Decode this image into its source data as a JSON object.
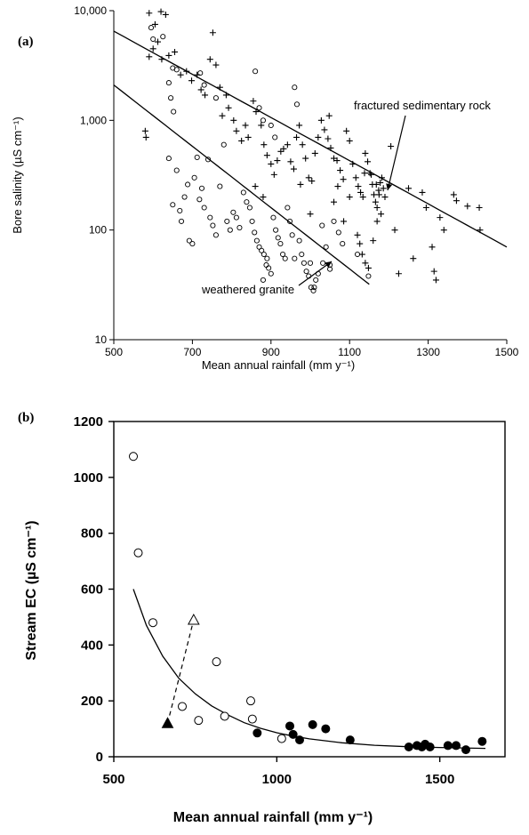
{
  "chart_data": [
    {
      "panel": "(a)",
      "type": "scatter",
      "xlabel": "Mean annual rainfall (mm y⁻¹)",
      "ylabel": "Bore salinity (µS cm⁻¹)",
      "xlim": [
        500,
        1500
      ],
      "ylim": [
        10,
        10000
      ],
      "yscale": "log",
      "x_ticks": [
        "500",
        "700",
        "900",
        "1100",
        "1300",
        "1500"
      ],
      "y_ticks": [
        "10",
        "100",
        "1,000",
        "10,000"
      ],
      "grid": false,
      "series": [
        {
          "marker": "plus",
          "points": [
            [
              590,
              9500
            ],
            [
              605,
              7500
            ],
            [
              620,
              9800
            ],
            [
              632,
              9200
            ],
            [
              590,
              3800
            ],
            [
              600,
              4500
            ],
            [
              612,
              5200
            ],
            [
              622,
              3600
            ],
            [
              640,
              3900
            ],
            [
              655,
              4200
            ],
            [
              580,
              800
            ],
            [
              582,
              700
            ],
            [
              670,
              2600
            ],
            [
              685,
              2800
            ],
            [
              698,
              2300
            ],
            [
              712,
              2600
            ],
            [
              722,
              1900
            ],
            [
              732,
              1700
            ],
            [
              745,
              3600
            ],
            [
              752,
              6300
            ],
            [
              760,
              3200
            ],
            [
              770,
              2000
            ],
            [
              776,
              1100
            ],
            [
              786,
              1700
            ],
            [
              792,
              1300
            ],
            [
              805,
              1000
            ],
            [
              812,
              800
            ],
            [
              825,
              650
            ],
            [
              835,
              900
            ],
            [
              842,
              700
            ],
            [
              855,
              1500
            ],
            [
              862,
              1200
            ],
            [
              875,
              900
            ],
            [
              882,
              600
            ],
            [
              890,
              480
            ],
            [
              900,
              400
            ],
            [
              908,
              320
            ],
            [
              916,
              430
            ],
            [
              925,
              520
            ],
            [
              932,
              550
            ],
            [
              942,
              600
            ],
            [
              950,
              420
            ],
            [
              958,
              360
            ],
            [
              965,
              700
            ],
            [
              972,
              900
            ],
            [
              980,
              600
            ],
            [
              988,
              450
            ],
            [
              996,
              300
            ],
            [
              1004,
              280
            ],
            [
              1012,
              500
            ],
            [
              1020,
              700
            ],
            [
              1028,
              1000
            ],
            [
              1036,
              820
            ],
            [
              1045,
              680
            ],
            [
              1052,
              560
            ],
            [
              1060,
              450
            ],
            [
              1068,
              430
            ],
            [
              1076,
              350
            ],
            [
              1084,
              290
            ],
            [
              1092,
              800
            ],
            [
              1100,
              650
            ],
            [
              1108,
              400
            ],
            [
              1116,
              300
            ],
            [
              1122,
              250
            ],
            [
              1128,
              220
            ],
            [
              1134,
              200
            ],
            [
              1140,
              500
            ],
            [
              1146,
              420
            ],
            [
              1152,
              330
            ],
            [
              1158,
              260
            ],
            [
              1162,
              210
            ],
            [
              1166,
              180
            ],
            [
              1170,
              160
            ],
            [
              1174,
              230
            ],
            [
              1178,
              270
            ],
            [
              1182,
              300
            ],
            [
              1186,
              240
            ],
            [
              1190,
              200
            ],
            [
              1120,
              90
            ],
            [
              1126,
              75
            ],
            [
              1132,
              60
            ],
            [
              1140,
              50
            ],
            [
              1148,
              45
            ],
            [
              1160,
              80
            ],
            [
              1170,
              120
            ],
            [
              1180,
              140
            ],
            [
              1205,
              580
            ],
            [
              1215,
              100
            ],
            [
              1225,
              40
            ],
            [
              1250,
              240
            ],
            [
              1262,
              55
            ],
            [
              1285,
              220
            ],
            [
              1295,
              160
            ],
            [
              1310,
              70
            ],
            [
              1315,
              42
            ],
            [
              1320,
              35
            ],
            [
              1330,
              130
            ],
            [
              1340,
              100
            ],
            [
              1365,
              210
            ],
            [
              1372,
              185
            ],
            [
              1400,
              165
            ],
            [
              1430,
              160
            ],
            [
              1432,
              100
            ],
            [
              860,
              250
            ],
            [
              880,
              200
            ],
            [
              1000,
              140
            ],
            [
              1060,
              180
            ],
            [
              1085,
              120
            ],
            [
              1138,
              330
            ],
            [
              1168,
              260
            ],
            [
              1175,
              210
            ],
            [
              1048,
              1100
            ],
            [
              1070,
              250
            ],
            [
              1100,
              200
            ],
            [
              1155,
              320
            ],
            [
              975,
              260
            ]
          ]
        },
        {
          "marker": "circle",
          "points": [
            [
              595,
              7000
            ],
            [
              600,
              5500
            ],
            [
              625,
              5800
            ],
            [
              645,
              1600
            ],
            [
              652,
              1200
            ],
            [
              640,
              450
            ],
            [
              650,
              170
            ],
            [
              660,
              350
            ],
            [
              668,
              150
            ],
            [
              672,
              120
            ],
            [
              680,
              200
            ],
            [
              688,
              260
            ],
            [
              692,
              80
            ],
            [
              700,
              75
            ],
            [
              705,
              300
            ],
            [
              712,
              460
            ],
            [
              718,
              190
            ],
            [
              724,
              240
            ],
            [
              730,
              160
            ],
            [
              740,
              440
            ],
            [
              745,
              130
            ],
            [
              752,
              110
            ],
            [
              760,
              90
            ],
            [
              770,
              250
            ],
            [
              780,
              600
            ],
            [
              788,
              120
            ],
            [
              796,
              100
            ],
            [
              804,
              145
            ],
            [
              812,
              130
            ],
            [
              820,
              105
            ],
            [
              830,
              220
            ],
            [
              838,
              180
            ],
            [
              846,
              160
            ],
            [
              852,
              120
            ],
            [
              858,
              95
            ],
            [
              864,
              80
            ],
            [
              870,
              70
            ],
            [
              876,
              65
            ],
            [
              882,
              60
            ],
            [
              888,
              48
            ],
            [
              894,
              45
            ],
            [
              900,
              40
            ],
            [
              906,
              130
            ],
            [
              912,
              100
            ],
            [
              918,
              85
            ],
            [
              924,
              75
            ],
            [
              930,
              60
            ],
            [
              936,
              55
            ],
            [
              942,
              160
            ],
            [
              948,
              120
            ],
            [
              954,
              90
            ],
            [
              960,
              2000
            ],
            [
              966,
              1400
            ],
            [
              972,
              80
            ],
            [
              978,
              60
            ],
            [
              984,
              50
            ],
            [
              990,
              42
            ],
            [
              996,
              38
            ],
            [
              1002,
              30
            ],
            [
              1008,
              28
            ],
            [
              1014,
              35
            ],
            [
              1020,
              40
            ],
            [
              1030,
              110
            ],
            [
              1040,
              70
            ],
            [
              1050,
              48
            ],
            [
              1060,
              120
            ],
            [
              1072,
              95
            ],
            [
              1082,
              75
            ],
            [
              860,
              2800
            ],
            [
              870,
              1300
            ],
            [
              880,
              1000
            ],
            [
              900,
              900
            ],
            [
              910,
              700
            ],
            [
              720,
              2700
            ],
            [
              730,
              2100
            ],
            [
              760,
              1600
            ],
            [
              640,
              2200
            ],
            [
              650,
              3000
            ],
            [
              660,
              2900
            ],
            [
              880,
              35
            ],
            [
              890,
              55
            ],
            [
              1000,
              50
            ],
            [
              1010,
              30
            ],
            [
              1120,
              60
            ],
            [
              1148,
              38
            ],
            [
              960,
              55
            ],
            [
              1050,
              44
            ],
            [
              1032,
              50
            ]
          ]
        }
      ],
      "curves": [
        {
          "name": "fractured sedimentary rock",
          "x": [
            500,
            1500
          ],
          "y": [
            6500,
            70
          ]
        },
        {
          "name": "weathered granite",
          "x": [
            500,
            1150
          ],
          "y": [
            2100,
            32
          ]
        }
      ],
      "annotations": [
        "fractured sedimentary rock",
        "weathered granite"
      ]
    },
    {
      "panel": "(b)",
      "type": "scatter",
      "xlabel": "Mean annual rainfall (mm y⁻¹)",
      "ylabel": "Stream EC (µS cm⁻¹)",
      "xlim": [
        500,
        1700
      ],
      "ylim": [
        0,
        1200
      ],
      "x_ticks": [
        "500",
        "1000",
        "1500"
      ],
      "y_ticks": [
        "0",
        "200",
        "400",
        "600",
        "800",
        "1000",
        "1200"
      ],
      "grid": false,
      "series": [
        {
          "marker": "open-circle",
          "points": [
            [
              560,
              1075
            ],
            [
              575,
              730
            ],
            [
              620,
              480
            ],
            [
              710,
              180
            ],
            [
              760,
              130
            ],
            [
              815,
              340
            ],
            [
              840,
              145
            ],
            [
              920,
              200
            ],
            [
              925,
              135
            ],
            [
              1015,
              65
            ]
          ]
        },
        {
          "marker": "filled-circle",
          "points": [
            [
              940,
              85
            ],
            [
              1040,
              110
            ],
            [
              1050,
              80
            ],
            [
              1070,
              60
            ],
            [
              1110,
              115
            ],
            [
              1150,
              100
            ],
            [
              1225,
              60
            ],
            [
              1405,
              35
            ],
            [
              1430,
              40
            ],
            [
              1445,
              35
            ],
            [
              1455,
              45
            ],
            [
              1470,
              35
            ],
            [
              1525,
              40
            ],
            [
              1550,
              40
            ],
            [
              1580,
              25
            ],
            [
              1630,
              55
            ]
          ]
        },
        {
          "marker": "filled-triangle",
          "points": [
            [
              665,
              120
            ]
          ]
        },
        {
          "marker": "open-triangle",
          "points": [
            [
              745,
              490
            ]
          ]
        }
      ],
      "connector": {
        "style": "dashed",
        "from": [
          665,
          120
        ],
        "to": [
          745,
          490
        ]
      },
      "curve": {
        "x": [
          560,
          600,
          650,
          700,
          750,
          800,
          850,
          900,
          950,
          1000,
          1050,
          1100,
          1200,
          1300,
          1400,
          1500,
          1640
        ],
        "y": [
          600,
          470,
          360,
          280,
          225,
          182,
          150,
          122,
          102,
          86,
          74,
          64,
          50,
          41,
          36,
          33,
          30
        ]
      }
    }
  ],
  "colors": {
    "ink": "#000000",
    "background": "#ffffff"
  }
}
